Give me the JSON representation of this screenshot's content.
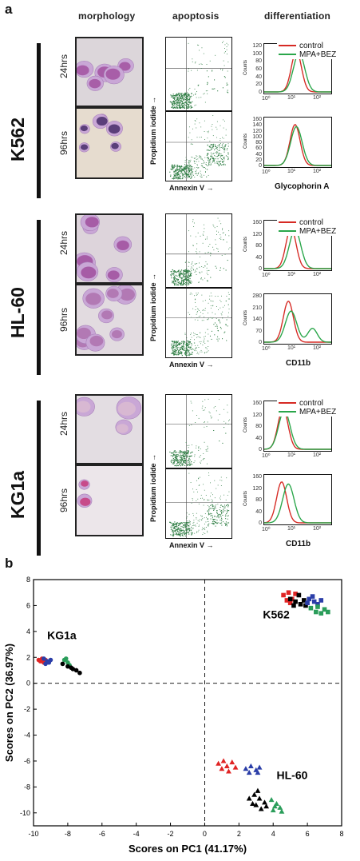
{
  "panel_a": {
    "letter": "a",
    "columns": {
      "morphology": "morphology",
      "apoptosis": "apoptosis",
      "differentiation": "differentiation"
    },
    "time_24": "24hrs",
    "time_96": "96hrs",
    "pi_label": "Propidium iodide →",
    "annexin_label": "Annexin V →",
    "counts_label": "Counts",
    "legend": {
      "control": "control",
      "treated": "MPA+BEZ"
    },
    "colors": {
      "control": "#d62a24",
      "treated": "#2aa64a",
      "flow_dots": "#2e7d43"
    },
    "rows": [
      {
        "cell_line": "K562",
        "marker": "Glycophorin A",
        "yticks_24": [
          "0",
          "20",
          "40",
          "60",
          "80",
          "100",
          "120"
        ],
        "yticks_96": [
          "0",
          "20",
          "40",
          "60",
          "80",
          "100",
          "120",
          "140",
          "160"
        ]
      },
      {
        "cell_line": "HL-60",
        "marker": "CD11b",
        "yticks_24": [
          "0",
          "40",
          "80",
          "120",
          "160"
        ],
        "yticks_96": [
          "0",
          "70",
          "140",
          "210",
          "280"
        ]
      },
      {
        "cell_line": "KG1a",
        "marker": "CD11b",
        "yticks_24": [
          "0",
          "40",
          "80",
          "120",
          "160"
        ],
        "yticks_96": [
          "0",
          "40",
          "80",
          "120",
          "160"
        ]
      }
    ],
    "xticks": [
      "10⁰",
      "10¹",
      "10²"
    ]
  },
  "panel_b": {
    "letter": "b",
    "chart_data": {
      "type": "scatter",
      "xlabel": "Scores on PC1 (41.17%)",
      "ylabel": "Scores on PC2 (36.97%)",
      "xlim": [
        -10,
        8
      ],
      "ylim": [
        -11,
        8
      ],
      "xticks": [
        -10,
        -8,
        -6,
        -4,
        -2,
        0,
        2,
        4,
        6,
        8
      ],
      "yticks": [
        -10,
        -8,
        -6,
        -4,
        -2,
        0,
        2,
        4,
        6,
        8
      ],
      "reference_lines": {
        "x": 0,
        "y": 0,
        "style": "dashed"
      },
      "annotations": [
        "KG1a",
        "K562",
        "HL-60"
      ],
      "series": [
        {
          "color": "#e02424",
          "marker": "circle",
          "points": [
            [
              -9.6,
              1.7
            ],
            [
              -9.5,
              1.9
            ],
            [
              -9.4,
              1.6
            ],
            [
              -9.7,
              1.8
            ],
            [
              -9.3,
              1.8
            ]
          ]
        },
        {
          "color": "#2b3ea8",
          "marker": "circle",
          "points": [
            [
              -9.4,
              1.9
            ],
            [
              -9.2,
              1.7
            ],
            [
              -9.0,
              1.8
            ],
            [
              -9.3,
              1.5
            ],
            [
              -9.1,
              1.6
            ]
          ]
        },
        {
          "color": "#2a9d5a",
          "marker": "circle",
          "points": [
            [
              -8.2,
              1.8
            ],
            [
              -8.0,
              1.6
            ],
            [
              -8.3,
              1.5
            ],
            [
              -7.9,
              1.4
            ],
            [
              -8.1,
              1.9
            ]
          ]
        },
        {
          "color": "#000000",
          "marker": "circle",
          "points": [
            [
              -8.3,
              1.5
            ],
            [
              -8.0,
              1.3
            ],
            [
              -7.7,
              1.1
            ],
            [
              -7.5,
              1.0
            ],
            [
              -7.3,
              0.8
            ],
            [
              -7.8,
              1.2
            ]
          ]
        },
        {
          "color": "#e02424",
          "marker": "square",
          "points": [
            [
              4.6,
              6.8
            ],
            [
              4.8,
              6.4
            ],
            [
              4.9,
              7.0
            ],
            [
              5.1,
              6.5
            ],
            [
              5.3,
              6.9
            ],
            [
              5.0,
              6.2
            ]
          ]
        },
        {
          "color": "#000000",
          "marker": "square",
          "points": [
            [
              5.0,
              6.5
            ],
            [
              5.3,
              6.3
            ],
            [
              5.6,
              6.1
            ],
            [
              5.8,
              6.4
            ],
            [
              5.5,
              6.8
            ],
            [
              5.9,
              6.0
            ],
            [
              5.2,
              6.0
            ]
          ]
        },
        {
          "color": "#2b3ea8",
          "marker": "square",
          "points": [
            [
              6.1,
              6.5
            ],
            [
              6.4,
              6.3
            ],
            [
              6.6,
              6.1
            ],
            [
              6.3,
              6.7
            ],
            [
              6.8,
              6.4
            ],
            [
              6.0,
              6.2
            ]
          ]
        },
        {
          "color": "#2a9d5a",
          "marker": "square",
          "points": [
            [
              6.2,
              5.8
            ],
            [
              6.5,
              5.5
            ],
            [
              6.8,
              5.4
            ],
            [
              7.2,
              5.5
            ],
            [
              6.6,
              5.9
            ],
            [
              7.0,
              5.7
            ]
          ]
        },
        {
          "color": "#e02424",
          "marker": "triangle",
          "points": [
            [
              0.8,
              -6.2
            ],
            [
              1.1,
              -6.0
            ],
            [
              1.3,
              -6.4
            ],
            [
              1.6,
              -6.1
            ],
            [
              1.0,
              -6.6
            ],
            [
              1.4,
              -6.8
            ],
            [
              1.8,
              -6.5
            ]
          ]
        },
        {
          "color": "#2b3ea8",
          "marker": "triangle",
          "points": [
            [
              2.4,
              -6.6
            ],
            [
              2.7,
              -6.4
            ],
            [
              3.0,
              -6.7
            ],
            [
              3.2,
              -6.5
            ],
            [
              2.6,
              -6.9
            ],
            [
              3.1,
              -6.9
            ]
          ]
        },
        {
          "color": "#000000",
          "marker": "triangle",
          "points": [
            [
              2.6,
              -8.9
            ],
            [
              2.9,
              -8.6
            ],
            [
              3.2,
              -8.9
            ],
            [
              3.5,
              -9.2
            ],
            [
              3.0,
              -9.4
            ],
            [
              3.3,
              -9.7
            ],
            [
              2.8,
              -9.3
            ],
            [
              3.6,
              -9.5
            ],
            [
              3.1,
              -8.3
            ]
          ]
        },
        {
          "color": "#2a9d5a",
          "marker": "triangle",
          "points": [
            [
              3.9,
              -9.0
            ],
            [
              4.2,
              -9.3
            ],
            [
              4.4,
              -9.6
            ],
            [
              4.0,
              -9.8
            ],
            [
              4.5,
              -9.9
            ],
            [
              4.1,
              -9.5
            ]
          ]
        }
      ]
    }
  }
}
